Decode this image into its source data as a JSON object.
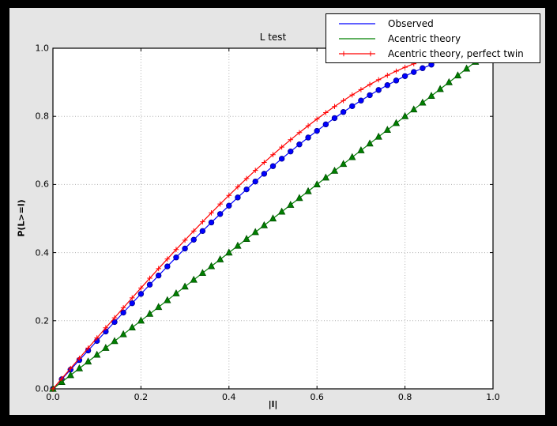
{
  "figure": {
    "title": "L test",
    "xlabel": "|l|",
    "ylabel": "P(L>=l)",
    "xticks": [
      "0.0",
      "0.2",
      "0.4",
      "0.6",
      "0.8",
      "1.0"
    ],
    "yticks": [
      "0.0",
      "0.2",
      "0.4",
      "0.6",
      "0.8",
      "1.0"
    ],
    "background_color": "#000000",
    "canvas_color": "#e5e5e5",
    "plot_background": "#ffffff",
    "grid_color": "#b0b0b0"
  },
  "chart_data": {
    "type": "line",
    "title": "L test",
    "xlabel": "|l|",
    "ylabel": "P(L>=l)",
    "xlim": [
      0,
      1
    ],
    "ylim": [
      0,
      1
    ],
    "grid": true,
    "grid_style": "dotted",
    "legend_position": "upper right",
    "legend_entries": [
      "Observed",
      "Acentric theory",
      "Acentric theory, perfect twin"
    ],
    "series": [
      {
        "name": "Observed",
        "color": "#0000ff",
        "marker": "circle",
        "legend_shows_marker": false,
        "x": [
          0,
          0.02,
          0.04,
          0.06,
          0.08,
          0.1,
          0.12,
          0.14,
          0.16,
          0.18,
          0.2,
          0.22,
          0.24,
          0.26,
          0.28,
          0.3,
          0.32,
          0.34,
          0.36,
          0.38,
          0.4,
          0.42,
          0.44,
          0.46,
          0.48,
          0.5,
          0.52,
          0.54,
          0.56,
          0.58,
          0.6,
          0.62,
          0.64,
          0.66,
          0.68,
          0.7,
          0.72,
          0.74,
          0.76,
          0.78,
          0.8,
          0.82,
          0.84,
          0.86
        ],
        "y": [
          0,
          0.0282,
          0.0564,
          0.0845,
          0.1126,
          0.1406,
          0.1685,
          0.1963,
          0.2239,
          0.2514,
          0.2787,
          0.3058,
          0.3327,
          0.3594,
          0.3858,
          0.4119,
          0.4378,
          0.4633,
          0.4885,
          0.5133,
          0.5378,
          0.5618,
          0.5855,
          0.6087,
          0.6315,
          0.6538,
          0.6756,
          0.6968,
          0.7176,
          0.7378,
          0.7574,
          0.7765,
          0.7949,
          0.8127,
          0.8299,
          0.8464,
          0.8622,
          0.8773,
          0.8916,
          0.9052,
          0.9181,
          0.9301,
          0.9414,
          0.9518
        ]
      },
      {
        "name": "Acentric theory",
        "color": "#008000",
        "marker": "triangle",
        "legend_shows_marker": false,
        "x": [
          0,
          0.02,
          0.04,
          0.06,
          0.08,
          0.1,
          0.12,
          0.14,
          0.16,
          0.18,
          0.2,
          0.22,
          0.24,
          0.26,
          0.28,
          0.3,
          0.32,
          0.34,
          0.36,
          0.38,
          0.4,
          0.42,
          0.44,
          0.46,
          0.48,
          0.5,
          0.52,
          0.54,
          0.56,
          0.58,
          0.6,
          0.62,
          0.64,
          0.66,
          0.68,
          0.7,
          0.72,
          0.74,
          0.76,
          0.78,
          0.8,
          0.82,
          0.84,
          0.86,
          0.88,
          0.9,
          0.92,
          0.94,
          0.96
        ],
        "y": [
          0,
          0.02,
          0.04,
          0.06,
          0.08,
          0.1,
          0.12,
          0.14,
          0.16,
          0.18,
          0.2,
          0.22,
          0.24,
          0.26,
          0.28,
          0.3,
          0.32,
          0.34,
          0.36,
          0.38,
          0.4,
          0.42,
          0.44,
          0.46,
          0.48,
          0.5,
          0.52,
          0.54,
          0.56,
          0.58,
          0.6,
          0.62,
          0.64,
          0.66,
          0.68,
          0.7,
          0.72,
          0.74,
          0.76,
          0.78,
          0.8,
          0.82,
          0.84,
          0.86,
          0.88,
          0.9,
          0.92,
          0.94,
          0.96
        ]
      },
      {
        "name": "Acentric theory, perfect twin",
        "color": "#ff0000",
        "marker": "plus",
        "legend_shows_marker": true,
        "x": [
          0,
          0.02,
          0.04,
          0.06,
          0.08,
          0.1,
          0.12,
          0.14,
          0.16,
          0.18,
          0.2,
          0.22,
          0.24,
          0.26,
          0.28,
          0.3,
          0.32,
          0.34,
          0.36,
          0.38,
          0.4,
          0.42,
          0.44,
          0.46,
          0.48,
          0.5,
          0.52,
          0.54,
          0.56,
          0.58,
          0.6,
          0.62,
          0.64,
          0.66,
          0.68,
          0.7,
          0.72,
          0.74,
          0.76,
          0.78,
          0.8,
          0.82,
          0.84,
          0.86
        ],
        "y": [
          0,
          0.03,
          0.06,
          0.0899,
          0.1197,
          0.1495,
          0.1791,
          0.2086,
          0.238,
          0.2671,
          0.296,
          0.3247,
          0.3531,
          0.3812,
          0.409,
          0.4365,
          0.4636,
          0.4903,
          0.5167,
          0.5426,
          0.568,
          0.593,
          0.6174,
          0.6413,
          0.6647,
          0.6875,
          0.7097,
          0.7313,
          0.7522,
          0.7724,
          0.792,
          0.8108,
          0.8289,
          0.8463,
          0.8628,
          0.8785,
          0.8934,
          0.9074,
          0.9205,
          0.9327,
          0.944,
          0.9543,
          0.9637,
          0.972
        ]
      }
    ]
  }
}
